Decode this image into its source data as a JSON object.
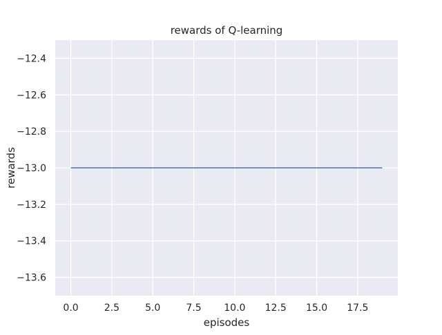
{
  "chart_data": {
    "type": "line",
    "title": "rewards of Q-learning",
    "xlabel": "episodes",
    "ylabel": "rewards",
    "xlim": [
      -0.95,
      19.95
    ],
    "ylim": [
      -13.7,
      -12.3
    ],
    "xticks": [
      0.0,
      2.5,
      5.0,
      7.5,
      10.0,
      12.5,
      15.0,
      17.5
    ],
    "xtick_labels": [
      "0.0",
      "2.5",
      "5.0",
      "7.5",
      "10.0",
      "12.5",
      "15.0",
      "17.5"
    ],
    "yticks": [
      -12.4,
      -12.6,
      -12.8,
      -13.0,
      -13.2,
      -13.4,
      -13.6
    ],
    "ytick_labels": [
      "−12.4",
      "−12.6",
      "−12.8",
      "−13.0",
      "−13.2",
      "−13.4",
      "−13.6"
    ],
    "grid": true,
    "x": [
      0,
      1,
      2,
      3,
      4,
      5,
      6,
      7,
      8,
      9,
      10,
      11,
      12,
      13,
      14,
      15,
      16,
      17,
      18,
      19
    ],
    "series": [
      {
        "values": [
          -13,
          -13,
          -13,
          -13,
          -13,
          -13,
          -13,
          -13,
          -13,
          -13,
          -13,
          -13,
          -13,
          -13,
          -13,
          -13,
          -13,
          -13,
          -13,
          -13
        ],
        "color": "#4c72b0"
      }
    ],
    "colors": {
      "plot_background": "#eaeaf2",
      "grid": "#ffffff",
      "text": "#262626"
    }
  }
}
